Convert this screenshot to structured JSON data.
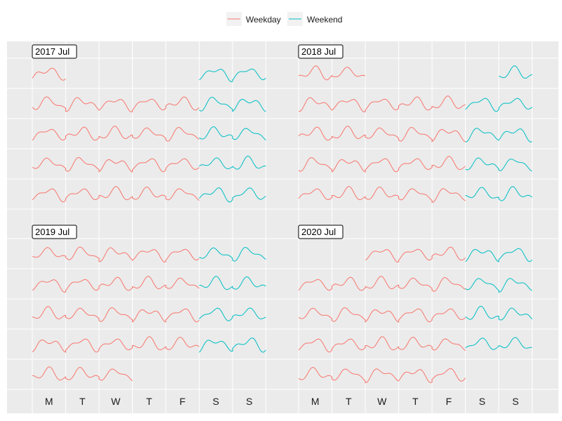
{
  "chart_data": {
    "type": "line",
    "layout": "calendar-facets",
    "legend": {
      "position": "top",
      "items": [
        {
          "label": "Weekday",
          "color": "#F8766D"
        },
        {
          "label": "Weekend",
          "color": "#00BFC4"
        }
      ]
    },
    "x_tick_labels": [
      "M",
      "T",
      "W",
      "T",
      "F",
      "S",
      "S"
    ],
    "weekend_days": [
      5,
      6
    ],
    "grid": true,
    "panel_background": "#EBEBEB",
    "grid_color": "#ffffff",
    "panels": [
      {
        "label": "2017 Jul",
        "weeks": [
          [
            0,
            0
          ],
          [
            0,
            4
          ],
          [
            0,
            4
          ],
          [
            0,
            4
          ],
          [
            0,
            4
          ]
        ],
        "weekend_partial": [
          [
            5,
            6
          ],
          [
            5,
            6
          ],
          [
            5,
            6
          ],
          [
            5,
            6
          ],
          [
            5,
            6
          ]
        ],
        "first_week_weekend": [
          5,
          6
        ]
      },
      {
        "label": "2018 Jul",
        "weeks": [
          [
            0,
            1
          ],
          [
            0,
            4
          ],
          [
            0,
            4
          ],
          [
            0,
            4
          ],
          [
            0,
            4
          ]
        ],
        "first_week_weekend": [
          6,
          6
        ]
      },
      {
        "label": "2019 Jul",
        "weeks": [
          [
            0,
            4
          ],
          [
            0,
            4
          ],
          [
            0,
            4
          ],
          [
            0,
            4
          ],
          [
            0,
            2
          ]
        ],
        "last_week_no_weekend": true
      },
      {
        "label": "2020 Jul",
        "weeks": [
          [
            2,
            4
          ],
          [
            0,
            4
          ],
          [
            0,
            4
          ],
          [
            0,
            4
          ],
          [
            0,
            4
          ]
        ],
        "last_week_no_weekend": true
      }
    ]
  }
}
